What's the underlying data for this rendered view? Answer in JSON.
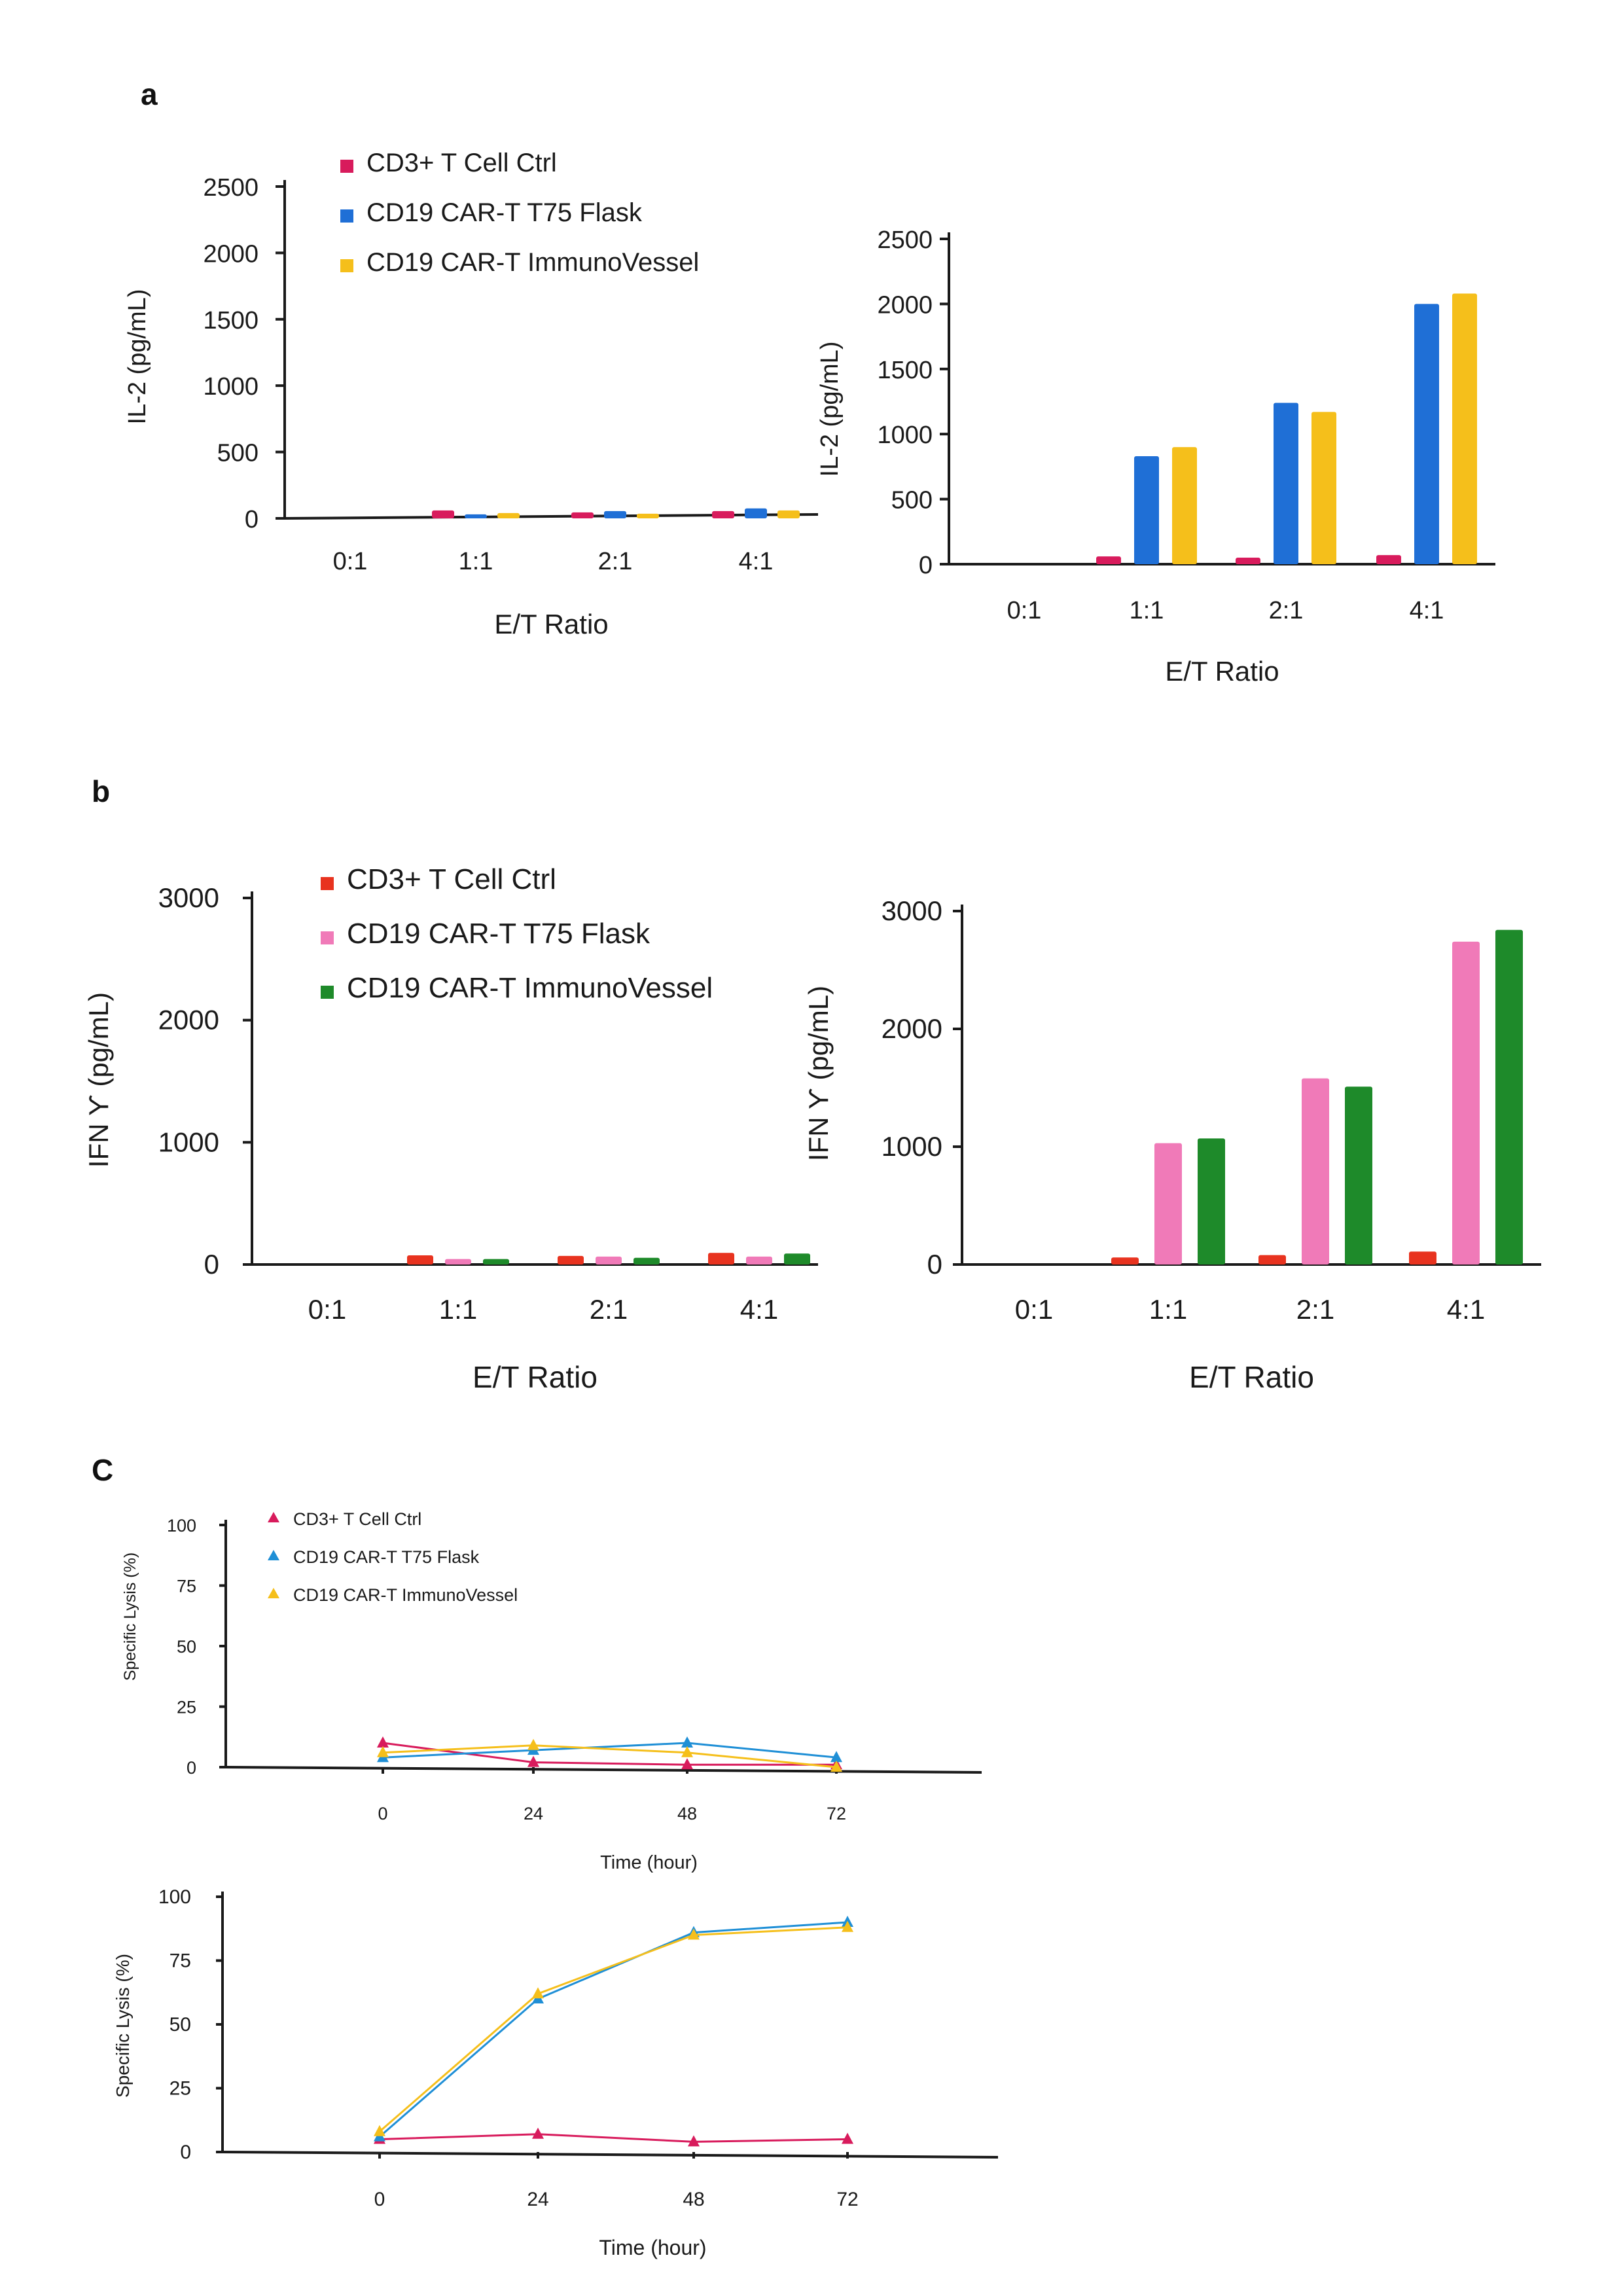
{
  "panels": [
    {
      "label": "a"
    },
    {
      "label": "b"
    },
    {
      "label": "C"
    }
  ],
  "chart_data": [
    {
      "id": "a-left",
      "type": "bar",
      "panel": "a",
      "categories": [
        "0:1",
        "1:1",
        "2:1",
        "4:1"
      ],
      "series": [
        {
          "name": "CD3+ T Cell Ctrl",
          "color": "#d81b5c",
          "values": [
            0,
            60,
            45,
            55
          ]
        },
        {
          "name": "CD19 CAR-T T75 Flask",
          "color": "#1f6fd6",
          "values": [
            0,
            30,
            55,
            75
          ]
        },
        {
          "name": "CD19 CAR-T ImmunoVessel",
          "color": "#f5bf1b",
          "values": [
            0,
            40,
            35,
            60
          ]
        }
      ],
      "title": "",
      "xlabel": "E/T Ratio",
      "ylabel": "IL-2 (pg/mL)",
      "ylim": [
        0,
        2500
      ],
      "yticks": [
        "0",
        "500",
        "1000",
        "1500",
        "2000",
        "2500"
      ],
      "legend": "top"
    },
    {
      "id": "a-right",
      "type": "bar",
      "panel": "a",
      "categories": [
        "0:1",
        "1:1",
        "2:1",
        "4:1"
      ],
      "series": [
        {
          "name": "CD3+ T Cell Ctrl",
          "color": "#d81b5c",
          "values": [
            0,
            60,
            50,
            70
          ]
        },
        {
          "name": "CD19 CAR-T T75 Flask",
          "color": "#1f6fd6",
          "values": [
            0,
            830,
            1240,
            2000
          ]
        },
        {
          "name": "CD19 CAR-T ImmunoVessel",
          "color": "#f5bf1b",
          "values": [
            0,
            900,
            1170,
            2080
          ]
        }
      ],
      "title": "",
      "xlabel": "E/T Ratio",
      "ylabel": "IL-2 (pg/mL)",
      "ylim": [
        0,
        2500
      ],
      "yticks": [
        "0",
        "500",
        "1000",
        "1500",
        "2000",
        "2500"
      ],
      "legend": "none"
    },
    {
      "id": "b-left",
      "type": "bar",
      "panel": "b",
      "categories": [
        "0:1",
        "1:1",
        "2:1",
        "4:1"
      ],
      "series": [
        {
          "name": "CD3+ T Cell Ctrl",
          "color": "#e8331f",
          "values": [
            0,
            75,
            70,
            95
          ]
        },
        {
          "name": "CD19 CAR-T T75 Flask",
          "color": "#f07ab8",
          "values": [
            0,
            45,
            65,
            65
          ]
        },
        {
          "name": "CD19 CAR-T ImmunoVessel",
          "color": "#1e8a2a",
          "values": [
            0,
            45,
            55,
            90
          ]
        }
      ],
      "title": "",
      "xlabel": "E/T Ratio",
      "ylabel": "IFN Ƴ  (pg/mL)",
      "ylim": [
        0,
        3000
      ],
      "yticks": [
        "0",
        "1000",
        "2000",
        "3000"
      ],
      "legend": "top"
    },
    {
      "id": "b-right",
      "type": "bar",
      "panel": "b",
      "categories": [
        "0:1",
        "1:1",
        "2:1",
        "4:1"
      ],
      "series": [
        {
          "name": "CD3+ T Cell Ctrl",
          "color": "#e8331f",
          "values": [
            0,
            60,
            80,
            110
          ]
        },
        {
          "name": "CD19 CAR-T T75 Flask",
          "color": "#f07ab8",
          "values": [
            0,
            1030,
            1580,
            2740
          ]
        },
        {
          "name": "CD19 CAR-T ImmunoVessel",
          "color": "#1e8a2a",
          "values": [
            0,
            1070,
            1510,
            2840
          ]
        }
      ],
      "title": "",
      "xlabel": "E/T Ratio",
      "ylabel": "IFN Ƴ  (pg/mL)",
      "ylim": [
        0,
        3000
      ],
      "yticks": [
        "0",
        "1000",
        "2000",
        "3000"
      ],
      "legend": "none"
    },
    {
      "id": "c-top",
      "type": "line",
      "panel": "C",
      "x": [
        0,
        24,
        48,
        72
      ],
      "xticks": [
        "0",
        "24",
        "48",
        "72"
      ],
      "series": [
        {
          "name": "CD3+ T Cell Ctrl",
          "color": "#d81b5c",
          "values": [
            10,
            2,
            1,
            1
          ]
        },
        {
          "name": "CD19 CAR-T T75 Flask",
          "color": "#1f8fd6",
          "values": [
            4,
            7,
            10,
            4
          ]
        },
        {
          "name": "CD19 CAR-T ImmunoVessel",
          "color": "#f5bf1b",
          "values": [
            6,
            9,
            6,
            0
          ]
        }
      ],
      "title": "",
      "xlabel": "Time (hour)",
      "ylabel": "Specific Lysis (%)",
      "ylim": [
        0,
        100
      ],
      "yticks": [
        "0",
        "25",
        "50",
        "75",
        "100"
      ],
      "legend": "top"
    },
    {
      "id": "c-bottom",
      "type": "line",
      "panel": "C",
      "x": [
        0,
        24,
        48,
        72
      ],
      "xticks": [
        "0",
        "24",
        "48",
        "72"
      ],
      "series": [
        {
          "name": "CD3+ T Cell Ctrl",
          "color": "#d81b5c",
          "values": [
            5,
            7,
            4,
            5
          ]
        },
        {
          "name": "CD19 CAR-T T75 Flask",
          "color": "#1f8fd6",
          "values": [
            6,
            60,
            86,
            90
          ]
        },
        {
          "name": "CD19 CAR-T ImmunoVessel",
          "color": "#f5bf1b",
          "values": [
            8,
            62,
            85,
            88
          ]
        }
      ],
      "title": "",
      "xlabel": "Time (hour)",
      "ylabel": "Specific Lysis (%)",
      "ylim": [
        0,
        100
      ],
      "yticks": [
        "0",
        "25",
        "50",
        "75",
        "100"
      ],
      "legend": "none"
    }
  ]
}
